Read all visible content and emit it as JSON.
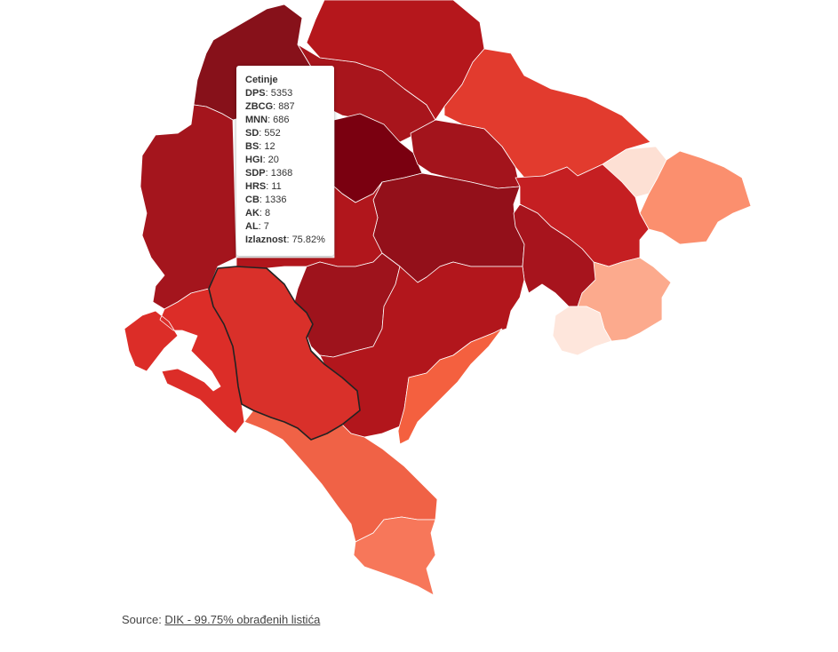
{
  "map": {
    "regions": [
      {
        "id": "north-west",
        "color": "#87111a"
      },
      {
        "id": "north-centre",
        "color": "#a8151c"
      },
      {
        "id": "north",
        "color": "#b5171c"
      },
      {
        "id": "north-east-upper",
        "color": "#e23b2e"
      },
      {
        "id": "east-pale",
        "color": "#fde0d4"
      },
      {
        "id": "east-salmon",
        "color": "#fb8f6e"
      },
      {
        "id": "cetinje-highlight",
        "color": "#7a0010"
      },
      {
        "id": "upper-middle",
        "color": "#a3141c"
      },
      {
        "id": "middle-large",
        "color": "#93101a"
      },
      {
        "id": "east-middle",
        "color": "#c51f22"
      },
      {
        "id": "east-middle-2",
        "color": "#a7141d"
      },
      {
        "id": "south-east-light",
        "color": "#fcaa8d"
      },
      {
        "id": "south-east-palest",
        "color": "#fee6dc"
      },
      {
        "id": "west-large",
        "color": "#a4151d"
      },
      {
        "id": "centre-south",
        "color": "#b1161c"
      },
      {
        "id": "centre-south-2",
        "color": "#9e131c"
      },
      {
        "id": "south-central",
        "color": "#b2161c"
      },
      {
        "id": "south-east-strip",
        "color": "#f4603f"
      },
      {
        "id": "coastal-west",
        "color": "#dc2d28"
      },
      {
        "id": "selected",
        "color": "#d9302a"
      },
      {
        "id": "south-coast",
        "color": "#f06246"
      },
      {
        "id": "south-tip",
        "color": "#f7775a"
      }
    ]
  },
  "tooltip": {
    "title": "Cetinje",
    "rows": [
      {
        "label": "DPS",
        "value": ": 5353"
      },
      {
        "label": "ZBCG",
        "value": ": 887"
      },
      {
        "label": "MNN",
        "value": ": 686"
      },
      {
        "label": "SD",
        "value": ": 552"
      },
      {
        "label": "BS",
        "value": ": 12"
      },
      {
        "label": "HGI",
        "value": ": 20"
      },
      {
        "label": "SDP",
        "value": ": 1368"
      },
      {
        "label": "HRS",
        "value": ": 11"
      },
      {
        "label": "CB",
        "value": ": 1336"
      },
      {
        "label": "AK",
        "value": ": 8"
      },
      {
        "label": "AL",
        "value": ": 7"
      },
      {
        "label": "Izlaznost",
        "value": ": 75.82%"
      }
    ]
  },
  "footer": {
    "prefix": "Source: ",
    "link": "DIK - 99.75% obrađenih listića"
  }
}
